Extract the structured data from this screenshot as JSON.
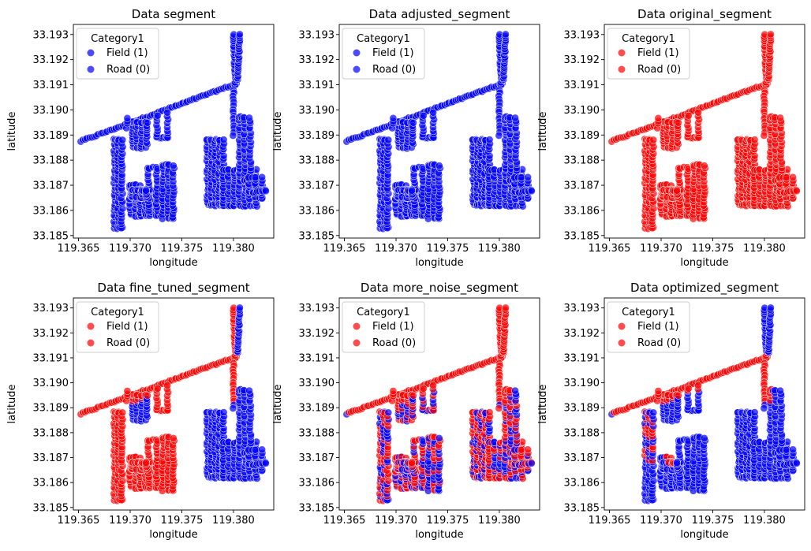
{
  "figure": {
    "legend_title": "Category1",
    "legend_position": "upper-left"
  },
  "colors": {
    "red": "#ff0000",
    "blue": "#0000ff"
  },
  "chart_data": [
    {
      "type": "scatter",
      "title": "Data segment",
      "xlabel": "longitude",
      "ylabel": "latitude",
      "xlim": [
        119.3645,
        119.3839
      ],
      "ylim": [
        33.1849,
        33.1934
      ],
      "xticks": [
        "119.365",
        "119.370",
        "119.375",
        "119.380"
      ],
      "xtick_values": [
        119.365,
        119.37,
        119.375,
        119.38
      ],
      "yticks": [
        "33.185",
        "33.186",
        "33.187",
        "33.188",
        "33.189",
        "33.190",
        "33.191",
        "33.192",
        "33.193"
      ],
      "ytick_values": [
        33.185,
        33.186,
        33.187,
        33.188,
        33.189,
        33.19,
        33.191,
        33.192,
        33.193
      ],
      "legend": [
        {
          "label": "Field (1)",
          "color": "#0000ff"
        },
        {
          "label": "Road (0)",
          "color": "#0000ff"
        }
      ],
      "mode": "blue"
    },
    {
      "type": "scatter",
      "title": "Data adjusted_segment",
      "xlabel": "longitude",
      "ylabel": "latitude",
      "xlim": [
        119.3645,
        119.3839
      ],
      "ylim": [
        33.1849,
        33.1934
      ],
      "xticks": [
        "119.365",
        "119.370",
        "119.375",
        "119.380"
      ],
      "xtick_values": [
        119.365,
        119.37,
        119.375,
        119.38
      ],
      "yticks": [
        "33.185",
        "33.186",
        "33.187",
        "33.188",
        "33.189",
        "33.190",
        "33.191",
        "33.192",
        "33.193"
      ],
      "ytick_values": [
        33.185,
        33.186,
        33.187,
        33.188,
        33.189,
        33.19,
        33.191,
        33.192,
        33.193
      ],
      "legend": [
        {
          "label": "Field (1)",
          "color": "#0000ff"
        },
        {
          "label": "Road (0)",
          "color": "#0000ff"
        }
      ],
      "mode": "blue"
    },
    {
      "type": "scatter",
      "title": "Data original_segment",
      "xlabel": "longitude",
      "ylabel": "latitude",
      "xlim": [
        119.3645,
        119.3839
      ],
      "ylim": [
        33.1849,
        33.1934
      ],
      "xticks": [
        "119.365",
        "119.370",
        "119.375",
        "119.380"
      ],
      "xtick_values": [
        119.365,
        119.37,
        119.375,
        119.38
      ],
      "yticks": [
        "33.185",
        "33.186",
        "33.187",
        "33.188",
        "33.189",
        "33.190",
        "33.191",
        "33.192",
        "33.193"
      ],
      "ytick_values": [
        33.185,
        33.186,
        33.187,
        33.188,
        33.189,
        33.19,
        33.191,
        33.192,
        33.193
      ],
      "legend": [
        {
          "label": "Field (1)",
          "color": "#ff0000"
        },
        {
          "label": "Road (0)",
          "color": "#ff0000"
        }
      ],
      "mode": "red"
    },
    {
      "type": "scatter",
      "title": "Data fine_tuned_segment",
      "xlabel": "longitude",
      "ylabel": "latitude",
      "xlim": [
        119.3645,
        119.3839
      ],
      "ylim": [
        33.1849,
        33.1934
      ],
      "xticks": [
        "119.365",
        "119.370",
        "119.375",
        "119.380"
      ],
      "xtick_values": [
        119.365,
        119.37,
        119.375,
        119.38
      ],
      "yticks": [
        "33.185",
        "33.186",
        "33.187",
        "33.188",
        "33.189",
        "33.190",
        "33.191",
        "33.192",
        "33.193"
      ],
      "ytick_values": [
        33.185,
        33.186,
        33.187,
        33.188,
        33.189,
        33.19,
        33.191,
        33.192,
        33.193
      ],
      "legend": [
        {
          "label": "Field (1)",
          "color": "#ff0000"
        },
        {
          "label": "Road (0)",
          "color": "#ff0000"
        }
      ],
      "mode": "finetuned"
    },
    {
      "type": "scatter",
      "title": "Data more_noise_segment",
      "xlabel": "longitude",
      "ylabel": "latitude",
      "xlim": [
        119.3645,
        119.3839
      ],
      "ylim": [
        33.1849,
        33.1934
      ],
      "xticks": [
        "119.365",
        "119.370",
        "119.375",
        "119.380"
      ],
      "xtick_values": [
        119.365,
        119.37,
        119.375,
        119.38
      ],
      "yticks": [
        "33.185",
        "33.186",
        "33.187",
        "33.188",
        "33.189",
        "33.190",
        "33.191",
        "33.192",
        "33.193"
      ],
      "ytick_values": [
        33.185,
        33.186,
        33.187,
        33.188,
        33.189,
        33.19,
        33.191,
        33.192,
        33.193
      ],
      "legend": [
        {
          "label": "Field (1)",
          "color": "#ff0000"
        },
        {
          "label": "Road (0)",
          "color": "#ff0000"
        }
      ],
      "mode": "noise"
    },
    {
      "type": "scatter",
      "title": "Data optimized_segment",
      "xlabel": "longitude",
      "ylabel": "latitude",
      "xlim": [
        119.3645,
        119.3839
      ],
      "ylim": [
        33.1849,
        33.1934
      ],
      "xticks": [
        "119.365",
        "119.370",
        "119.375",
        "119.380"
      ],
      "xtick_values": [
        119.365,
        119.37,
        119.375,
        119.38
      ],
      "yticks": [
        "33.185",
        "33.186",
        "33.187",
        "33.188",
        "33.189",
        "33.190",
        "33.191",
        "33.192",
        "33.193"
      ],
      "ytick_values": [
        33.185,
        33.186,
        33.187,
        33.188,
        33.189,
        33.19,
        33.191,
        33.192,
        33.193
      ],
      "legend": [
        {
          "label": "Field (1)",
          "color": "#ff0000"
        },
        {
          "label": "Road (0)",
          "color": "#ff0000"
        }
      ],
      "mode": "optimized"
    }
  ]
}
